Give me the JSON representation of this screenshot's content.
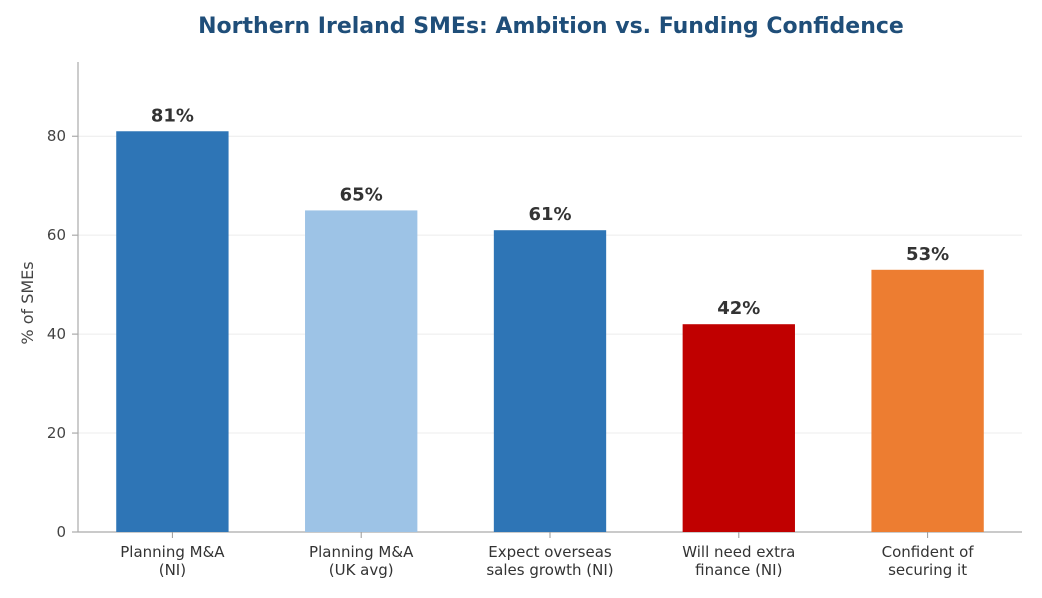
{
  "chart_data": {
    "type": "bar",
    "title": "Northern Ireland SMEs: Ambition vs. Funding Confidence",
    "xlabel": "",
    "ylabel": "% of SMEs",
    "ylim": [
      0,
      95
    ],
    "yticks": [
      0,
      20,
      40,
      60,
      80
    ],
    "grid": true,
    "categories": [
      [
        "Planning M&A",
        "(NI)"
      ],
      [
        "Planning M&A",
        "(UK avg)"
      ],
      [
        "Expect overseas",
        "sales growth (NI)"
      ],
      [
        "Will need extra",
        "finance (NI)"
      ],
      [
        "Confident of",
        "securing it"
      ]
    ],
    "values": [
      81,
      65,
      61,
      42,
      53
    ],
    "data_labels": [
      "81%",
      "65%",
      "61%",
      "42%",
      "53%"
    ],
    "colors": [
      "#2e75b6",
      "#9dc3e6",
      "#2e75b6",
      "#c00000",
      "#ed7d31"
    ]
  }
}
